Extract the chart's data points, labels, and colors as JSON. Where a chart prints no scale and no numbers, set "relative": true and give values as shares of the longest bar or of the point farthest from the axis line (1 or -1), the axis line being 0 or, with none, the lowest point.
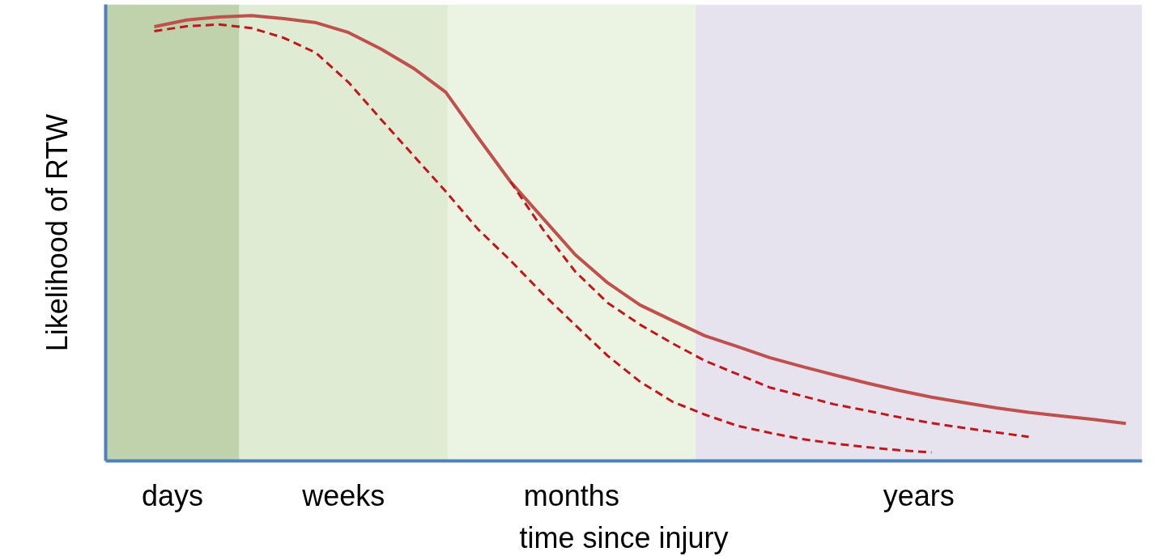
{
  "chart_data": {
    "type": "line",
    "relative": true,
    "xlabel": "time since injury",
    "ylabel": "Likelihood of RTW",
    "annotations": [
      "days",
      "weeks",
      "months",
      "years"
    ],
    "categories": [
      null,
      null,
      null,
      null,
      null,
      null,
      null,
      null,
      null,
      null,
      null,
      null,
      null,
      null,
      null,
      null,
      null,
      null,
      null,
      null,
      null,
      null,
      null,
      null,
      null,
      null,
      null,
      null,
      null,
      null,
      null,
      null
    ],
    "series": [
      {
        "color": "#c0504d",
        "line_style": "solid",
        "values": [
          null,
          0.975,
          0.99,
          0.997,
          1.0,
          0.993,
          0.984,
          0.962,
          0.925,
          0.882,
          0.828,
          0.726,
          0.627,
          0.545,
          0.463,
          0.4,
          0.35,
          0.315,
          0.281,
          0.257,
          0.232,
          0.212,
          0.193,
          0.175,
          0.158,
          0.143,
          0.131,
          0.119,
          0.109,
          0.101,
          0.093,
          0.084
        ]
      },
      {
        "color": "#c0171c",
        "line_style": "dashed",
        "values": [
          null,
          0.965,
          0.976,
          0.98,
          0.972,
          0.95,
          0.916,
          0.85,
          0.767,
          0.686,
          0.605,
          0.52,
          0.45,
          0.375,
          0.305,
          0.236,
          0.178,
          0.133,
          0.104,
          0.079,
          0.063,
          0.049,
          0.039,
          0.031,
          0.024,
          0.019,
          null,
          null,
          null,
          null,
          null,
          null
        ]
      },
      {
        "color": "#c0171c",
        "line_style": "dashed",
        "values": [
          null,
          null,
          null,
          null,
          null,
          null,
          null,
          null,
          null,
          null,
          null,
          null,
          0.627,
          0.52,
          0.425,
          0.355,
          0.306,
          0.264,
          0.225,
          0.195,
          0.165,
          0.146,
          0.127,
          0.113,
          0.098,
          0.085,
          0.074,
          0.064,
          0.054,
          null,
          null,
          null
        ]
      }
    ]
  }
}
